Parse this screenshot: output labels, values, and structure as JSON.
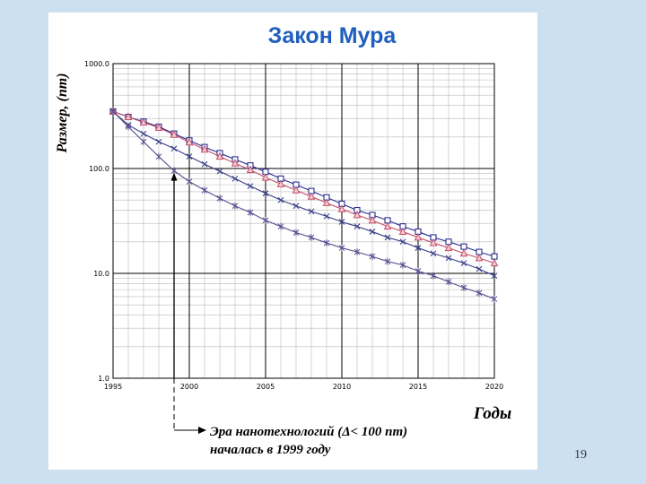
{
  "slide": {
    "page_number": "19"
  },
  "chart_data": {
    "type": "line",
    "title": "Закон Мура",
    "ylabel": "Размер, (nm)",
    "xlabel": "Годы",
    "y_scale": "log",
    "ylim": [
      1,
      1000
    ],
    "xlim": [
      1995,
      2020
    ],
    "y_ticks": [
      "1000.0",
      "100.0",
      "10.0",
      "1.0"
    ],
    "y_tick_values": [
      1000,
      100,
      10,
      1
    ],
    "x_ticks": [
      "1995",
      "2000",
      "2005",
      "2010",
      "2015",
      "2020"
    ],
    "x_tick_values": [
      1995,
      2000,
      2005,
      2010,
      2015,
      2020
    ],
    "grid": true,
    "colors": {
      "squares": "#2b2f8f",
      "triangles": "#c4506a",
      "crosses": "#3a3f8a",
      "stars": "#5b4f8f",
      "grid_major": "#000000",
      "grid_minor": "#bbbbbb",
      "title": "#1f5fbf"
    },
    "series": [
      {
        "marker": "square",
        "x": [
          1995,
          1996,
          1997,
          1998,
          1999,
          2000,
          2001,
          2002,
          2003,
          2004,
          2005,
          2006,
          2007,
          2008,
          2009,
          2010,
          2011,
          2012,
          2013,
          2014,
          2015,
          2016,
          2017,
          2018,
          2019,
          2020
        ],
        "values": [
          350,
          310,
          280,
          250,
          215,
          185,
          160,
          140,
          122,
          107,
          93,
          80,
          70,
          61,
          53,
          46,
          40,
          36,
          32,
          28,
          25,
          22,
          20,
          18,
          16,
          14.5
        ]
      },
      {
        "marker": "triangle",
        "x": [
          1995,
          1996,
          1997,
          1998,
          1999,
          2000,
          2001,
          2002,
          2003,
          2004,
          2005,
          2006,
          2007,
          2008,
          2009,
          2010,
          2011,
          2012,
          2013,
          2014,
          2015,
          2016,
          2017,
          2018,
          2019,
          2020
        ],
        "values": [
          350,
          310,
          275,
          245,
          210,
          178,
          152,
          130,
          112,
          97,
          82,
          71,
          62,
          54,
          47,
          41,
          36,
          32,
          28,
          25,
          22,
          19.5,
          17.5,
          15.5,
          14,
          12.5
        ]
      },
      {
        "marker": "cross",
        "x": [
          1995,
          1996,
          1997,
          1998,
          1999,
          2000,
          2001,
          2002,
          2003,
          2004,
          2005,
          2006,
          2007,
          2008,
          2009,
          2010,
          2011,
          2012,
          2013,
          2014,
          2015,
          2016,
          2017,
          2018,
          2019,
          2020
        ],
        "values": [
          350,
          260,
          215,
          180,
          155,
          130,
          110,
          94,
          80,
          68,
          58,
          50,
          44,
          39,
          35,
          31,
          28,
          25,
          22,
          20,
          17.5,
          15.5,
          14,
          12.5,
          11,
          9.5
        ]
      },
      {
        "marker": "star",
        "x": [
          1995,
          1996,
          1997,
          1998,
          1999,
          2000,
          2001,
          2002,
          2003,
          2004,
          2005,
          2006,
          2007,
          2008,
          2009,
          2010,
          2011,
          2012,
          2013,
          2014,
          2015,
          2016,
          2017,
          2018,
          2019,
          2020
        ],
        "values": [
          350,
          250,
          180,
          130,
          95,
          75,
          62,
          52,
          44,
          38,
          32,
          28,
          24.5,
          22,
          19.5,
          17.5,
          16,
          14.5,
          13,
          12,
          10.5,
          9.5,
          8.3,
          7.3,
          6.5,
          5.7
        ]
      }
    ],
    "annotation": {
      "text_line1": "Эра нанотехнологий (Δ< 100 nm)",
      "text_line2": "началась в 1999 году",
      "x": 1999,
      "y": 95
    }
  }
}
